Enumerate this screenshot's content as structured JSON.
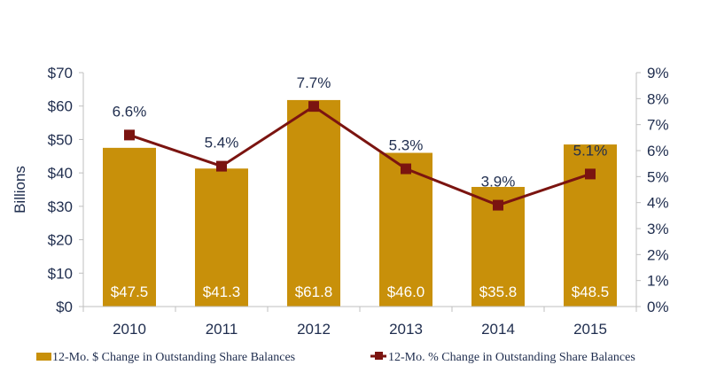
{
  "chart_data": {
    "type": "bar",
    "title": "",
    "xlabel": "",
    "ylabel": "Billions",
    "y2label": "",
    "categories": [
      "2010",
      "2011",
      "2012",
      "2013",
      "2014",
      "2015"
    ],
    "ylim": [
      0,
      70
    ],
    "y2lim": [
      0,
      9
    ],
    "yticks": [
      "$0",
      "$10",
      "$20",
      "$30",
      "$40",
      "$50",
      "$60",
      "$70"
    ],
    "y2ticks": [
      "0%",
      "1%",
      "2%",
      "3%",
      "4%",
      "5%",
      "6%",
      "7%",
      "8%",
      "9%"
    ],
    "grid": false,
    "legend_position": "bottom",
    "series": [
      {
        "name": "12-Mo. $ Change in Outstanding Share Balances",
        "type": "bar",
        "axis": "left",
        "color": "#c8900a",
        "values": [
          47.5,
          41.3,
          61.8,
          46.0,
          35.8,
          48.5
        ],
        "labels": [
          "$47.5",
          "$41.3",
          "$61.8",
          "$46.0",
          "$35.8",
          "$48.5"
        ]
      },
      {
        "name": "12-Mo. % Change in Outstanding Share Balances",
        "type": "line",
        "axis": "right",
        "color": "#7b1410",
        "marker": "square",
        "values": [
          6.6,
          5.4,
          7.7,
          5.3,
          3.9,
          5.1
        ],
        "labels": [
          "6.6%",
          "5.4%",
          "7.7%",
          "5.3%",
          "3.9%",
          "5.1%"
        ]
      }
    ]
  }
}
